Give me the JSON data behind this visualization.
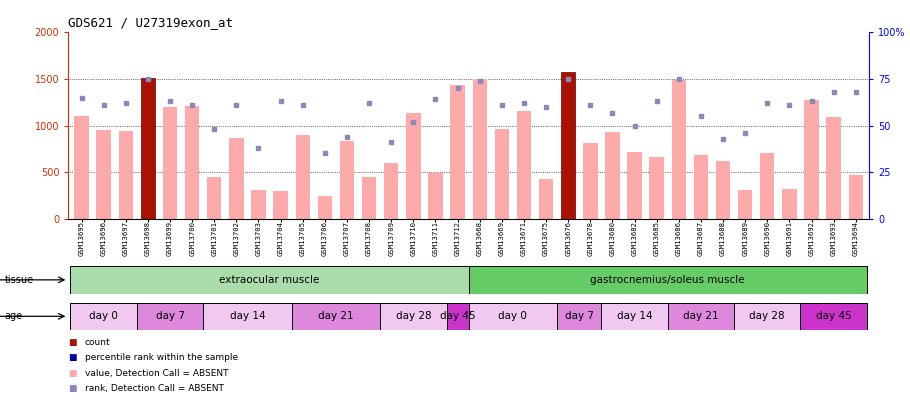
{
  "title": "GDS621 / U27319exon_at",
  "samples": [
    "GSM13695",
    "GSM13696",
    "GSM13697",
    "GSM13698",
    "GSM13699",
    "GSM13700",
    "GSM13701",
    "GSM13702",
    "GSM13703",
    "GSM13704",
    "GSM13705",
    "GSM13706",
    "GSM13707",
    "GSM13708",
    "GSM13709",
    "GSM13710",
    "GSM13711",
    "GSM13712",
    "GSM13668",
    "GSM13669",
    "GSM13671",
    "GSM13675",
    "GSM13676",
    "GSM13678",
    "GSM13680",
    "GSM13682",
    "GSM13685",
    "GSM13686",
    "GSM13687",
    "GSM13688",
    "GSM13689",
    "GSM13690",
    "GSM13691",
    "GSM13692",
    "GSM13693",
    "GSM13694"
  ],
  "bar_values": [
    1100,
    950,
    940,
    1510,
    1200,
    1210,
    450,
    870,
    310,
    300,
    900,
    240,
    835,
    450,
    600,
    1140,
    490,
    1430,
    1500,
    960,
    1160,
    430,
    1570,
    810,
    930,
    720,
    660,
    1490,
    680,
    620,
    310,
    700,
    320,
    1270,
    1090,
    470
  ],
  "rank_values": [
    65,
    61,
    62,
    75,
    63,
    61,
    48,
    61,
    38,
    63,
    61,
    35,
    44,
    62,
    41,
    52,
    64,
    70,
    74,
    61,
    62,
    60,
    75,
    61,
    57,
    50,
    63,
    75,
    55,
    43,
    46,
    62,
    61,
    63,
    68,
    68
  ],
  "is_dark_bar": [
    false,
    false,
    false,
    true,
    false,
    false,
    false,
    false,
    false,
    false,
    false,
    false,
    false,
    false,
    false,
    false,
    false,
    false,
    false,
    false,
    false,
    false,
    true,
    false,
    false,
    false,
    false,
    false,
    false,
    false,
    false,
    false,
    false,
    false,
    false,
    false
  ],
  "tissue_groups": [
    {
      "label": "extraocular muscle",
      "start": 0,
      "end": 17,
      "color": "#aaddaa"
    },
    {
      "label": "gastrocnemius/soleus muscle",
      "start": 18,
      "end": 35,
      "color": "#66cc66"
    }
  ],
  "age_groups": [
    {
      "label": "day 0",
      "start": 0,
      "end": 2,
      "color": "#f0c8f0"
    },
    {
      "label": "day 7",
      "start": 3,
      "end": 5,
      "color": "#dd88dd"
    },
    {
      "label": "day 14",
      "start": 6,
      "end": 9,
      "color": "#f0c8f0"
    },
    {
      "label": "day 21",
      "start": 10,
      "end": 13,
      "color": "#dd88dd"
    },
    {
      "label": "day 28",
      "start": 14,
      "end": 16,
      "color": "#f0c8f0"
    },
    {
      "label": "day 45",
      "start": 17,
      "end": 17,
      "color": "#cc33cc"
    },
    {
      "label": "day 0",
      "start": 18,
      "end": 21,
      "color": "#f0c8f0"
    },
    {
      "label": "day 7",
      "start": 22,
      "end": 23,
      "color": "#dd88dd"
    },
    {
      "label": "day 14",
      "start": 24,
      "end": 26,
      "color": "#f0c8f0"
    },
    {
      "label": "day 21",
      "start": 27,
      "end": 29,
      "color": "#dd88dd"
    },
    {
      "label": "day 28",
      "start": 30,
      "end": 32,
      "color": "#f0c8f0"
    },
    {
      "label": "day 45",
      "start": 33,
      "end": 35,
      "color": "#cc33cc"
    }
  ],
  "bar_color_normal": "#FFAAAA",
  "bar_color_dark": "#AA1100",
  "rank_color": "#8888BB",
  "ylim_left": [
    0,
    2000
  ],
  "ylim_right": [
    0,
    100
  ],
  "yticks_left": [
    0,
    500,
    1000,
    1500,
    2000
  ],
  "ytick_labels_left": [
    "0",
    "500",
    "1000",
    "1500",
    "2000"
  ],
  "yticks_right": [
    0,
    25,
    50,
    75,
    100
  ],
  "ytick_labels_right": [
    "0",
    "25",
    "50",
    "75",
    "100%"
  ],
  "hlines": [
    500,
    1000,
    1500
  ],
  "legend_items": [
    {
      "color": "#AA1100",
      "marker": "s",
      "label": "count"
    },
    {
      "color": "#0000AA",
      "marker": "s",
      "label": "percentile rank within the sample"
    },
    {
      "color": "#FFAAAA",
      "marker": "s",
      "label": "value, Detection Call = ABSENT"
    },
    {
      "color": "#8888BB",
      "marker": "s",
      "label": "rank, Detection Call = ABSENT"
    }
  ],
  "tissue_row_label": "tissue",
  "age_row_label": "age"
}
